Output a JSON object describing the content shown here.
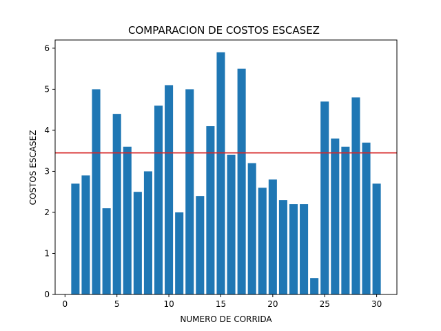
{
  "chart_data": {
    "type": "bar",
    "title": "COMPARACION DE  COSTOS ESCASEZ",
    "xlabel": "NUMERO DE CORRIDA",
    "ylabel": "COSTOS ESCASEZ",
    "x": [
      1,
      2,
      3,
      4,
      5,
      6,
      7,
      8,
      9,
      10,
      11,
      12,
      13,
      14,
      15,
      16,
      17,
      18,
      19,
      20,
      21,
      22,
      23,
      24,
      25,
      26,
      27,
      28,
      29,
      30
    ],
    "values": [
      2.7,
      2.9,
      5.0,
      2.1,
      4.4,
      3.6,
      2.5,
      3.0,
      4.6,
      5.1,
      2.0,
      5.0,
      2.4,
      4.1,
      5.9,
      3.4,
      5.5,
      3.2,
      2.6,
      2.8,
      2.3,
      2.2,
      2.2,
      0.4,
      4.7,
      3.8,
      3.6,
      4.8,
      3.7,
      2.7
    ],
    "xlim": [
      -0.95,
      31.95
    ],
    "ylim": [
      0,
      6.2
    ],
    "xticks": [
      0,
      5,
      10,
      15,
      20,
      25,
      30
    ],
    "yticks": [
      0,
      1,
      2,
      3,
      4,
      5,
      6
    ],
    "reference_line": {
      "y": 3.45,
      "color": "#d62728"
    },
    "bar_color": "#1f77b4",
    "grid": false,
    "legend": false
  }
}
